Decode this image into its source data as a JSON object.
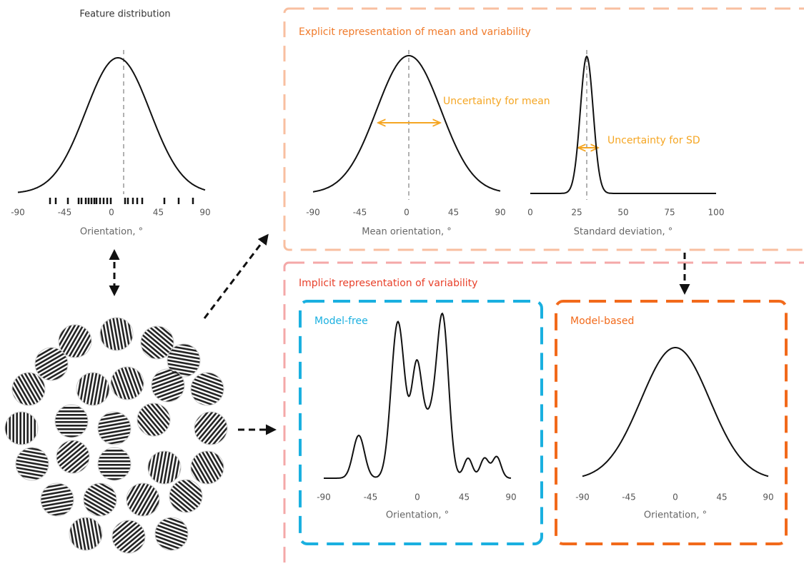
{
  "feature_panel": {
    "title": "Feature distribution",
    "xticks": [
      -90,
      -45,
      0,
      45,
      90
    ],
    "xlabel": "Orientation, °"
  },
  "explicit": {
    "title": "Explicit representation of mean and variability",
    "mean_plot": {
      "xticks": [
        -90,
        -45,
        0,
        45,
        90
      ],
      "xlabel": "Mean orientation, °",
      "annotation": "Uncertainty for mean"
    },
    "sd_plot": {
      "xticks": [
        0,
        25,
        50,
        75,
        100
      ],
      "xlabel": "Standard deviation, °",
      "annotation": "Uncertainty for SD"
    }
  },
  "implicit": {
    "title": "Implicit representation of variability",
    "model_free": {
      "title": "Model-free",
      "xticks": [
        -90,
        -45,
        0,
        45,
        90
      ],
      "xlabel": "Orientation, °"
    },
    "model_based": {
      "title": "Model-based",
      "xticks": [
        -90,
        -45,
        0,
        45,
        90
      ],
      "xlabel": "Orientation, °"
    }
  }
}
